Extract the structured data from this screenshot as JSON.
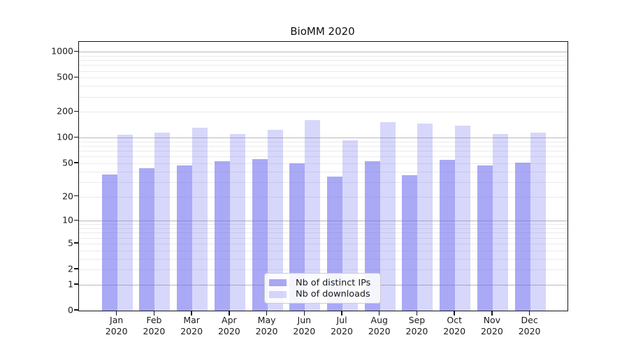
{
  "title": "BioMM 2020",
  "colors": {
    "bar_ips": "rgba(106,106,240,0.58)",
    "bar_downloads": "rgba(106,106,240,0.27)",
    "grid_major": "#b8b8b8",
    "grid_minor": "#ebebeb",
    "spine": "#151515",
    "text": "#1a1a1a",
    "legend_border": "#cccccc"
  },
  "legend": {
    "position": "lower center",
    "items": [
      {
        "label": "Nb of distinct IPs"
      },
      {
        "label": "Nb of downloads"
      }
    ]
  },
  "chart_data": {
    "type": "bar",
    "title": "BioMM 2020",
    "categories": [
      "Jan",
      "Feb",
      "Mar",
      "Apr",
      "May",
      "Jun",
      "Jul",
      "Aug",
      "Sep",
      "Oct",
      "Nov",
      "Dec"
    ],
    "category_year": "2020",
    "series": [
      {
        "name": "Nb of distinct IPs",
        "values": [
          37,
          44,
          47,
          53,
          56,
          50,
          35,
          53,
          36,
          55,
          47,
          51
        ]
      },
      {
        "name": "Nb of downloads",
        "values": [
          108,
          114,
          131,
          111,
          124,
          160,
          93,
          151,
          148,
          139,
          111,
          114
        ]
      }
    ],
    "xlabel": "",
    "ylabel": "",
    "yscale": "symlog-log1p",
    "yticks": [
      0,
      1,
      2,
      5,
      10,
      20,
      50,
      100,
      200,
      500,
      1000
    ],
    "ylim": [
      0,
      1300
    ],
    "grid": "on",
    "legend_position": "lower center"
  }
}
